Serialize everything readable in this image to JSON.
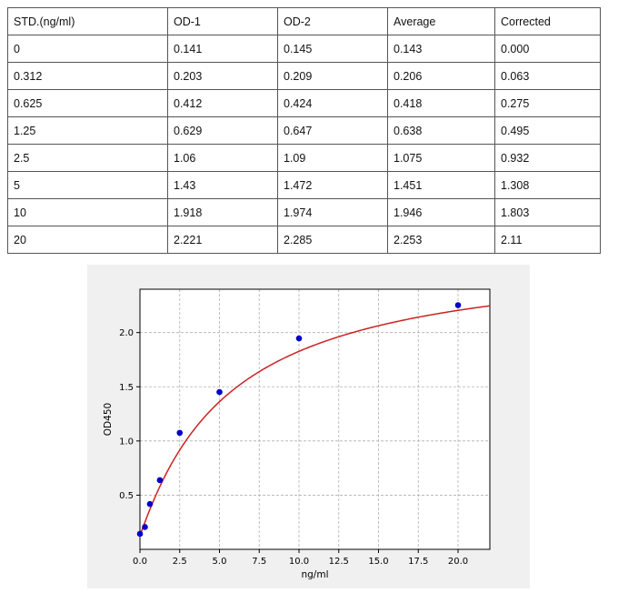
{
  "table": {
    "headers": [
      "STD.(ng/ml)",
      "OD-1",
      "OD-2",
      "Average",
      "Corrected"
    ],
    "rows": [
      [
        "0",
        "0.141",
        "0.145",
        "0.143",
        "0.000"
      ],
      [
        "0.312",
        "0.203",
        "0.209",
        "0.206",
        "0.063"
      ],
      [
        "0.625",
        "0.412",
        "0.424",
        "0.418",
        "0.275"
      ],
      [
        "1.25",
        "0.629",
        "0.647",
        "0.638",
        "0.495"
      ],
      [
        "2.5",
        "1.06",
        "1.09",
        "1.075",
        "0.932"
      ],
      [
        "5",
        "1.43",
        "1.472",
        "1.451",
        "1.308"
      ],
      [
        "10",
        "1.918",
        "1.974",
        "1.946",
        "1.803"
      ],
      [
        "20",
        "2.221",
        "2.285",
        "2.253",
        "2.11"
      ]
    ]
  },
  "chart_data": {
    "type": "scatter",
    "xlabel": "ng/ml",
    "ylabel": "OD450",
    "xlim": [
      0,
      22
    ],
    "ylim": [
      0,
      2.4
    ],
    "xticks": [
      "0.0",
      "2.5",
      "5.0",
      "7.5",
      "10.0",
      "12.5",
      "15.0",
      "17.5",
      "20.0"
    ],
    "yticks": [
      "0.5",
      "1.0",
      "1.5",
      "2.0"
    ],
    "grid": true,
    "points": [
      {
        "x": 0,
        "y": 0.143
      },
      {
        "x": 0.312,
        "y": 0.206
      },
      {
        "x": 0.625,
        "y": 0.418
      },
      {
        "x": 1.25,
        "y": 0.638
      },
      {
        "x": 2.5,
        "y": 1.075
      },
      {
        "x": 5,
        "y": 1.451
      },
      {
        "x": 10,
        "y": 1.946
      },
      {
        "x": 20,
        "y": 2.253
      }
    ],
    "point_color": "#0000cc",
    "curve_color": "#cc2222",
    "fit": {
      "model": "4PL",
      "a": 0.13,
      "b": 1.05,
      "c": 5.6,
      "d": 2.75
    }
  }
}
